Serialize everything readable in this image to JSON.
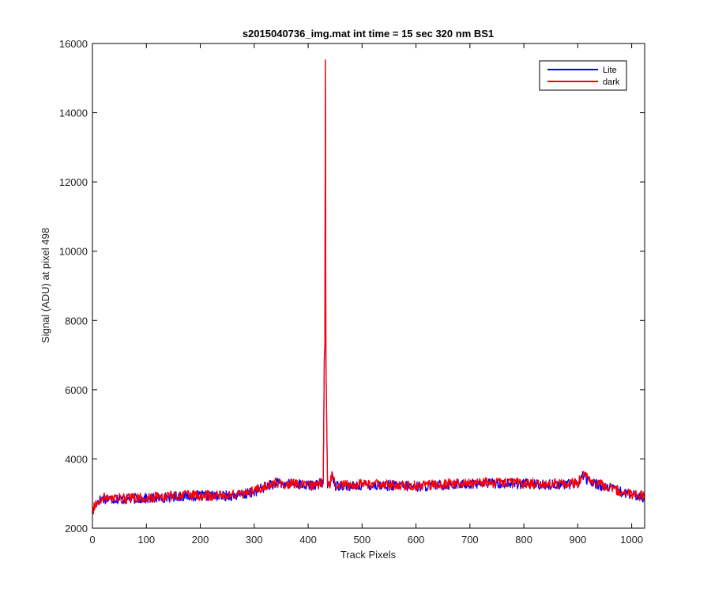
{
  "chart_data": {
    "type": "line",
    "title": "s2015040736_img.mat int time = 15 sec  320 nm BS1",
    "xlabel": "Track Pixels",
    "ylabel": "Signal (ADU) at pixel 498",
    "xlim": [
      0,
      1024
    ],
    "ylim": [
      2000,
      16000
    ],
    "xticks": [
      "0",
      "100",
      "200",
      "300",
      "400",
      "500",
      "600",
      "700",
      "800",
      "900",
      "1000"
    ],
    "yticks": [
      "2000",
      "4000",
      "6000",
      "8000",
      "10000",
      "12000",
      "14000",
      "16000"
    ],
    "grid": false,
    "legend_position": "top-right",
    "series": [
      {
        "name": "Lite",
        "color": "#0000ff",
        "x": [
          0,
          10,
          20,
          40,
          60,
          80,
          100,
          130,
          160,
          200,
          240,
          280,
          300,
          320,
          340,
          360,
          380,
          400,
          420,
          428,
          430,
          431,
          432,
          433,
          436,
          440,
          445,
          450,
          460,
          480,
          500,
          550,
          600,
          650,
          700,
          750,
          800,
          850,
          900,
          910,
          920,
          950,
          980,
          1000,
          1024
        ],
        "values": [
          2480,
          2800,
          2850,
          2850,
          2830,
          2860,
          2860,
          2880,
          2930,
          2930,
          2930,
          2960,
          3050,
          3200,
          3300,
          3260,
          3290,
          3220,
          3270,
          3300,
          6900,
          7250,
          15500,
          6800,
          3180,
          3250,
          3600,
          3200,
          3250,
          3200,
          3250,
          3230,
          3200,
          3250,
          3280,
          3300,
          3280,
          3250,
          3280,
          3550,
          3350,
          3200,
          3050,
          2950,
          2900
        ]
      },
      {
        "name": "dark",
        "color": "#ff0000",
        "x": [
          0,
          10,
          20,
          40,
          60,
          80,
          100,
          130,
          160,
          200,
          240,
          280,
          300,
          320,
          340,
          360,
          380,
          400,
          420,
          428,
          430,
          431,
          432,
          433,
          436,
          440,
          445,
          450,
          460,
          480,
          500,
          550,
          600,
          650,
          700,
          750,
          800,
          850,
          900,
          910,
          920,
          950,
          980,
          1000,
          1024
        ],
        "values": [
          2500,
          2820,
          2870,
          2860,
          2850,
          2870,
          2880,
          2900,
          2950,
          2940,
          2950,
          2980,
          3070,
          3220,
          3310,
          3280,
          3300,
          3240,
          3280,
          3320,
          6950,
          7300,
          15530,
          6900,
          3200,
          3270,
          3550,
          3220,
          3270,
          3220,
          3270,
          3250,
          3220,
          3270,
          3300,
          3320,
          3300,
          3270,
          3300,
          3600,
          3370,
          3220,
          3070,
          2970,
          2920
        ]
      }
    ]
  }
}
